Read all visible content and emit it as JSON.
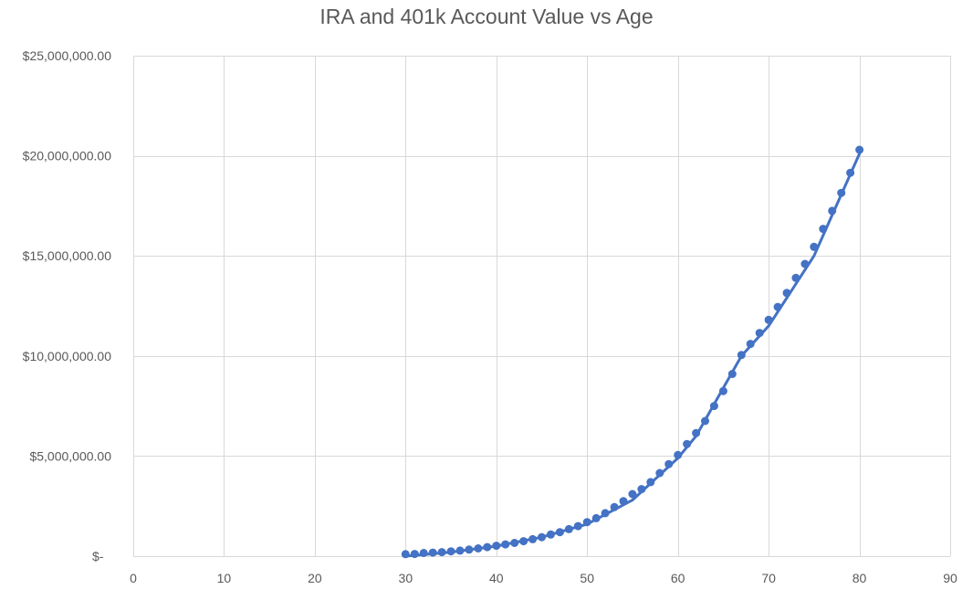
{
  "chart_data": {
    "type": "scatter",
    "title": "IRA and 401k Account Value vs Age",
    "xlabel": "",
    "ylabel": "",
    "xlim": [
      0,
      90
    ],
    "ylim": [
      0,
      25000000
    ],
    "x_ticks": [
      0,
      10,
      20,
      30,
      40,
      50,
      60,
      70,
      80,
      90
    ],
    "y_ticks": [
      0,
      5000000,
      10000000,
      15000000,
      20000000,
      25000000
    ],
    "x_tick_labels": [
      "0",
      "10",
      "20",
      "30",
      "40",
      "50",
      "60",
      "70",
      "80",
      "90"
    ],
    "y_tick_labels": [
      "$-",
      "$5,000,000.00",
      "$10,000,000.00",
      "$15,000,000.00",
      "$20,000,000.00",
      "$25,000,000.00"
    ],
    "grid": true,
    "legend": "none",
    "colors": {
      "series": "#4472C4",
      "grid": "#D9D9D9",
      "text": "#595959"
    },
    "series": [
      {
        "kind": "markers",
        "x": [
          30,
          31,
          32,
          33,
          34,
          35,
          36,
          37,
          38,
          39,
          40,
          41,
          42,
          43,
          44,
          45,
          46,
          47,
          48,
          49,
          50,
          51,
          52,
          53,
          54,
          55,
          56,
          57,
          58,
          59,
          60,
          61,
          62,
          63,
          64,
          65,
          66,
          67,
          68,
          69,
          70,
          71,
          72,
          73,
          74,
          75,
          76,
          77,
          78,
          79,
          80
        ],
        "values": [
          100000,
          110000,
          160000,
          180000,
          200000,
          240000,
          280000,
          330000,
          390000,
          450000,
          520000,
          590000,
          660000,
          750000,
          850000,
          950000,
          1080000,
          1200000,
          1350000,
          1500000,
          1700000,
          1900000,
          2150000,
          2450000,
          2750000,
          3100000,
          3350000,
          3700000,
          4150000,
          4600000,
          5050000,
          5600000,
          6150000,
          6750000,
          7500000,
          8250000,
          9100000,
          10050000,
          10600000,
          11150000,
          11800000,
          12450000,
          13150000,
          13900000,
          14600000,
          15450000,
          16350000,
          17250000,
          18150000,
          19150000,
          20300000
        ]
      },
      {
        "kind": "line",
        "x": [
          30,
          35,
          40,
          45,
          50,
          55,
          60,
          62,
          65,
          67,
          70,
          75,
          80
        ],
        "values": [
          0,
          200000,
          500000,
          950000,
          1600000,
          2800000,
          4900000,
          6000000,
          8400000,
          10000000,
          11500000,
          15000000,
          20100000
        ]
      }
    ]
  }
}
